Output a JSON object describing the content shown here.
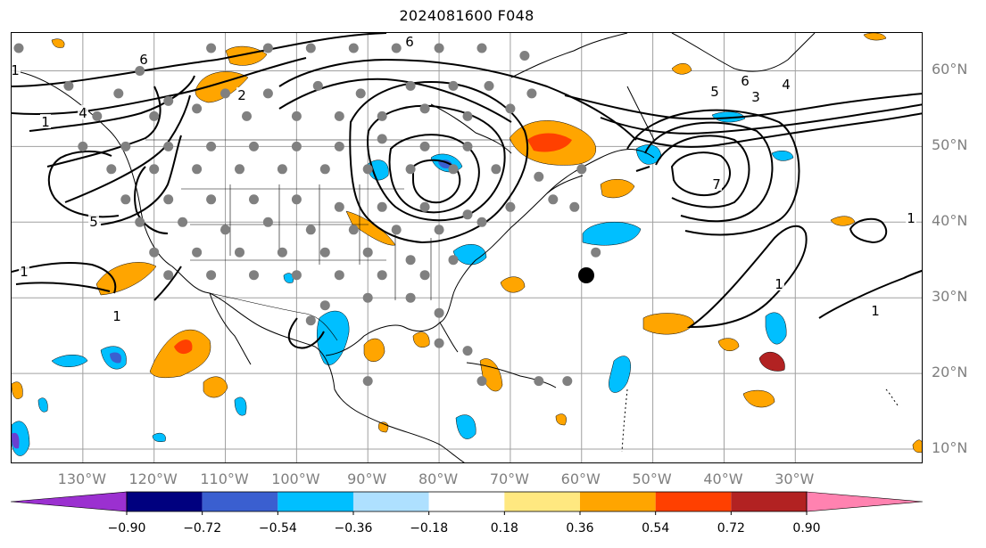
{
  "title": "2024081600 F048",
  "map": {
    "projection": "PlateCarree",
    "lon_range": [
      -140,
      -12
    ],
    "lat_range": [
      8,
      65
    ],
    "lon_ticks": [
      {
        "value": -130,
        "label": "130°W"
      },
      {
        "value": -120,
        "label": "120°W"
      },
      {
        "value": -110,
        "label": "110°W"
      },
      {
        "value": -100,
        "label": "100°W"
      },
      {
        "value": -90,
        "label": "90°W"
      },
      {
        "value": -80,
        "label": "80°W"
      },
      {
        "value": -70,
        "label": "70°W"
      },
      {
        "value": -60,
        "label": "60°W"
      },
      {
        "value": -50,
        "label": "50°W"
      },
      {
        "value": -40,
        "label": "40°W"
      },
      {
        "value": -30,
        "label": "30°W"
      }
    ],
    "lat_ticks": [
      {
        "value": 60,
        "label": "60°N"
      },
      {
        "value": 50,
        "label": "50°N"
      },
      {
        "value": 40,
        "label": "40°N"
      },
      {
        "value": 30,
        "label": "30°N"
      },
      {
        "value": 20,
        "label": "20°N"
      },
      {
        "value": 10,
        "label": "10°N"
      }
    ],
    "gridlines": true,
    "gridline_color": "#a0a0a0",
    "contour_color": "#000000",
    "contour_labels": [
      "1",
      "1",
      "1",
      "1",
      "1",
      "1",
      "1",
      "2",
      "3",
      "4",
      "4",
      "5",
      "5",
      "6",
      "6",
      "6",
      "7"
    ],
    "station_marker_color": "#808080",
    "storm_marker_color": "#000000"
  },
  "colorbar": {
    "extend": "both",
    "tick_labels": [
      "−0.90",
      "−0.72",
      "−0.54",
      "−0.36",
      "−0.18",
      "0.18",
      "0.36",
      "0.54",
      "0.72",
      "0.90"
    ],
    "colors": [
      "#9b30d0",
      "#00007f",
      "#3a5fd0",
      "#00bfff",
      "#aee0ff",
      "#ffffff",
      "#ffe880",
      "#ffa500",
      "#ff4000",
      "#b22222",
      "#ff82b0"
    ]
  }
}
